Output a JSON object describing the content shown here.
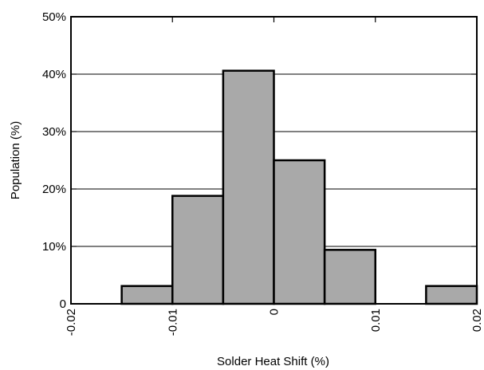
{
  "chart_data": {
    "type": "bar",
    "title": "",
    "xlabel": "Solder Heat Shift (%)",
    "ylabel": "Population (%)",
    "xlim": [
      -0.02,
      0.02
    ],
    "ylim": [
      0,
      50
    ],
    "x_ticks": [
      -0.02,
      -0.01,
      0,
      0.01,
      0.02
    ],
    "x_tick_labels": [
      "-0.02",
      "-0.01",
      "0",
      "0.01",
      "0.02"
    ],
    "y_ticks": [
      0,
      10,
      20,
      30,
      40,
      50
    ],
    "y_tick_labels": [
      "0",
      "10%",
      "20%",
      "30%",
      "40%",
      "50%"
    ],
    "grid": "horizontal",
    "bins": [
      {
        "x0": -0.015,
        "x1": -0.01,
        "value": 3.1
      },
      {
        "x0": -0.01,
        "x1": -0.005,
        "value": 18.8
      },
      {
        "x0": -0.005,
        "x1": 0.0,
        "value": 40.6
      },
      {
        "x0": 0.0,
        "x1": 0.005,
        "value": 25.0
      },
      {
        "x0": 0.005,
        "x1": 0.01,
        "value": 9.4
      },
      {
        "x0": 0.015,
        "x1": 0.02,
        "value": 3.1
      }
    ],
    "colors": {
      "bar_fill": "#a9a9a9",
      "bar_stroke": "#000000",
      "grid": "#000000",
      "axis": "#000000"
    }
  }
}
